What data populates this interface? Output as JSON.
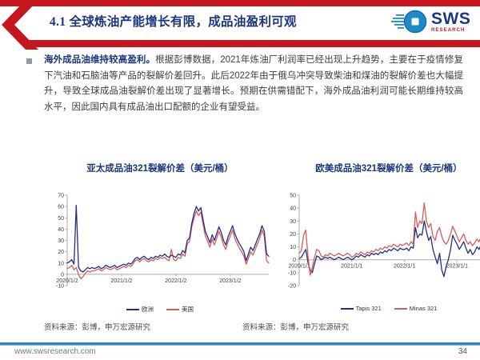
{
  "header": {
    "title": "4.1 全球炼油产能增长有限，成品油盈利可观",
    "logo": {
      "text": "SWS",
      "subtext": "RESEARCH"
    }
  },
  "body": {
    "lead": "海外成品油维持较高盈利。",
    "text": "根据彭博数据，2021年炼油厂利润率已经出现上升趋势，主要在于疫情修复下汽油和石脑油等产品的裂解价差回升。此后2022年由于俄乌冲突导致柴油和煤油的裂解价差也大幅提升，导致全球成品油裂解价差出现了显著增长。预期在供需错配下，海外成品油利润可能长期维持较高水平，因此国内具有成品油出口配额的企业有望受益。"
  },
  "chart_data": [
    {
      "type": "line",
      "title": "亚太成品油321裂解价差（美元/桶）",
      "ylabel": "美元/桶",
      "ylim": [
        -10,
        70
      ],
      "y_ticks": [
        70,
        60,
        50,
        40,
        30,
        20,
        10,
        0,
        -10
      ],
      "x_tick_labels": [
        "2020/1/2",
        "2021/1/2",
        "2022/1/2",
        "2023/1/2"
      ],
      "x_tick_indices": [
        0,
        24,
        48,
        72
      ],
      "n_points": 90,
      "grid": false,
      "legend_position": "bottom",
      "series": [
        {
          "name": "欧洲",
          "color": "#232E85",
          "z": 2,
          "values": [
            10,
            11,
            13,
            9,
            61,
            6,
            3,
            2,
            4,
            6,
            5,
            6,
            5,
            6,
            7,
            5,
            6,
            8,
            7,
            6,
            7,
            8,
            6,
            7,
            8,
            9,
            8,
            10,
            9,
            11,
            14,
            15,
            13,
            15,
            16,
            14,
            13,
            15,
            14,
            16,
            15,
            17,
            16,
            18,
            16,
            15,
            17,
            16,
            15,
            18,
            17,
            21,
            19,
            30,
            32,
            45,
            54,
            60,
            56,
            59,
            48,
            38,
            33,
            28,
            35,
            30,
            36,
            42,
            37,
            30,
            26,
            33,
            38,
            43,
            36,
            31,
            27,
            24,
            20,
            12,
            18,
            24,
            21,
            26,
            31,
            36,
            43,
            38,
            18,
            16
          ]
        },
        {
          "name": "美国",
          "color": "#D95B5B",
          "z": 1,
          "values": [
            5,
            6,
            8,
            4,
            6,
            0,
            -4,
            -2,
            1,
            3,
            2,
            3,
            3,
            4,
            5,
            3,
            4,
            6,
            5,
            4,
            5,
            6,
            4,
            5,
            6,
            7,
            6,
            8,
            7,
            9,
            12,
            13,
            11,
            13,
            14,
            12,
            11,
            13,
            12,
            14,
            13,
            15,
            14,
            15,
            13,
            12,
            22,
            13,
            12,
            15,
            14,
            18,
            16,
            27,
            29,
            42,
            50,
            56,
            52,
            55,
            44,
            34,
            29,
            24,
            31,
            26,
            32,
            38,
            33,
            26,
            22,
            29,
            34,
            39,
            32,
            27,
            23,
            20,
            16,
            9,
            14,
            20,
            17,
            22,
            27,
            32,
            39,
            34,
            12,
            10
          ]
        }
      ]
    },
    {
      "type": "line",
      "title": "欧美成品油321裂解价差（美元/桶）",
      "ylabel": "美元/桶",
      "ylim": [
        -20,
        50
      ],
      "y_ticks": [
        50,
        40,
        30,
        20,
        10,
        0,
        -10,
        -20
      ],
      "x_tick_labels": [
        "2020/1/1",
        "2021/1/1",
        "2022/1/1",
        "2023/1/1"
      ],
      "x_tick_indices": [
        0,
        24,
        48,
        72
      ],
      "n_points": 90,
      "grid": false,
      "legend_position": "bottom",
      "series": [
        {
          "name": "Tapis 321",
          "color": "#232E85",
          "z": 1,
          "values": [
            1,
            2,
            5,
            8,
            -2,
            -8,
            -10,
            -3,
            3,
            2,
            0,
            1,
            2,
            1,
            2,
            1,
            0,
            1,
            2,
            1,
            0,
            1,
            2,
            1,
            0,
            1,
            3,
            2,
            4,
            3,
            2,
            4,
            3,
            5,
            4,
            5,
            4,
            6,
            5,
            7,
            6,
            8,
            7,
            9,
            8,
            7,
            9,
            8,
            8,
            9,
            7,
            10,
            9,
            25,
            17,
            20,
            19,
            30,
            22,
            15,
            18,
            8,
            2,
            -3,
            5,
            -8,
            -13,
            -5,
            0,
            8,
            19,
            15,
            12,
            8,
            11,
            14,
            9,
            5,
            8,
            4,
            6,
            10,
            8,
            12,
            15,
            18,
            12,
            9,
            2,
            6
          ]
        },
        {
          "name": "Minas 321",
          "color": "#D95B5B",
          "z": 2,
          "values": [
            5,
            7,
            19,
            23,
            3,
            -12,
            -6,
            2,
            8,
            7,
            3,
            2,
            4,
            3,
            5,
            4,
            3,
            4,
            5,
            4,
            3,
            4,
            5,
            4,
            2,
            3,
            5,
            4,
            6,
            5,
            4,
            6,
            5,
            7,
            6,
            8,
            7,
            9,
            8,
            10,
            9,
            11,
            10,
            12,
            11,
            10,
            12,
            11,
            12,
            13,
            11,
            14,
            12,
            37,
            25,
            30,
            28,
            44,
            30,
            25,
            28,
            18,
            15,
            22,
            25,
            18,
            14,
            12,
            15,
            20,
            26,
            22,
            18,
            14,
            17,
            20,
            15,
            12,
            14,
            11,
            13,
            16,
            14,
            18,
            21,
            25,
            19,
            16,
            10,
            13
          ]
        }
      ]
    }
  ],
  "footers": {
    "source_left": "资料来源：彭博，申万宏源研究",
    "source_right": "资料来源：彭博，申万宏源研究",
    "url": "www.swsresearch.com",
    "page": "34"
  },
  "colors": {
    "accent_red": "#C4161C",
    "navy": "#1A3680",
    "line_blue": "#232E85",
    "line_red": "#D95B5B",
    "axis_gray": "#ABABAB",
    "footer_line_blue": "#2F88BE"
  }
}
